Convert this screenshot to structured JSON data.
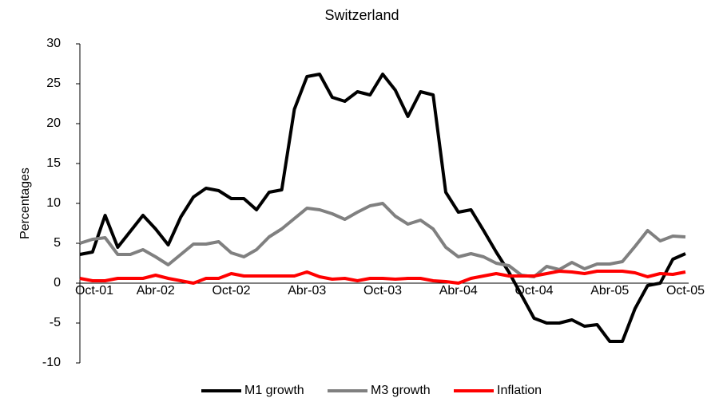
{
  "chart_data": {
    "type": "line",
    "title": "Switzerland",
    "y_label": "Percentages",
    "categories": [
      "Oct-01",
      null,
      null,
      null,
      null,
      null,
      "Abr-02",
      null,
      null,
      null,
      null,
      null,
      "Oct-02",
      null,
      null,
      null,
      null,
      null,
      "Abr-03",
      null,
      null,
      null,
      null,
      null,
      "Oct-03",
      null,
      null,
      null,
      null,
      null,
      "Abr-04",
      null,
      null,
      null,
      null,
      null,
      "Oct-04",
      null,
      null,
      null,
      null,
      null,
      "Abr-05",
      null,
      null,
      null,
      null,
      null,
      "Oct-05"
    ],
    "series": [
      {
        "name": "M1 growth",
        "color": "#000000",
        "values": [
          3.6,
          3.9,
          8.5,
          4.5,
          6.5,
          8.5,
          6.8,
          4.8,
          8.3,
          10.8,
          11.9,
          11.6,
          10.6,
          10.6,
          9.2,
          11.4,
          11.7,
          21.8,
          25.9,
          26.2,
          23.3,
          22.8,
          24.0,
          23.6,
          26.2,
          24.2,
          20.9,
          24.0,
          23.6,
          11.4,
          8.9,
          9.2,
          6.6,
          3.9,
          1.4,
          -1.5,
          -4.4,
          -5.0,
          -5.0,
          -4.6,
          -5.4,
          -5.2,
          -7.3,
          -7.3,
          -3.2,
          -0.3,
          0.0,
          3.0,
          3.7
        ]
      },
      {
        "name": "M3 growth",
        "color": "#808080",
        "values": [
          5.0,
          5.5,
          5.7,
          3.6,
          3.6,
          4.2,
          3.3,
          2.3,
          3.6,
          4.9,
          4.9,
          5.2,
          3.8,
          3.3,
          4.2,
          5.8,
          6.8,
          8.1,
          9.4,
          9.2,
          8.7,
          8.0,
          8.9,
          9.7,
          10.0,
          8.4,
          7.4,
          7.9,
          6.8,
          4.5,
          3.3,
          3.7,
          3.3,
          2.5,
          2.2,
          1.0,
          0.8,
          2.1,
          1.7,
          2.6,
          1.8,
          2.4,
          2.4,
          2.7,
          4.6,
          6.6,
          5.3,
          5.9,
          5.8
        ]
      },
      {
        "name": "Inflation",
        "color": "#ff0000",
        "values": [
          0.6,
          0.3,
          0.3,
          0.6,
          0.6,
          0.6,
          1.0,
          0.6,
          0.3,
          0.0,
          0.6,
          0.6,
          1.2,
          0.9,
          0.9,
          0.9,
          0.9,
          0.9,
          1.4,
          0.8,
          0.5,
          0.6,
          0.3,
          0.6,
          0.6,
          0.5,
          0.6,
          0.6,
          0.3,
          0.2,
          0.0,
          0.6,
          0.9,
          1.2,
          0.9,
          0.9,
          0.9,
          1.2,
          1.5,
          1.4,
          1.2,
          1.5,
          1.5,
          1.5,
          1.3,
          0.8,
          1.2,
          1.1,
          1.4
        ]
      }
    ],
    "ylim": [
      -10,
      30
    ],
    "yticks": [
      -10,
      -5,
      0,
      5,
      10,
      15,
      20,
      25,
      30
    ],
    "grid": false,
    "legend": "bottom"
  }
}
